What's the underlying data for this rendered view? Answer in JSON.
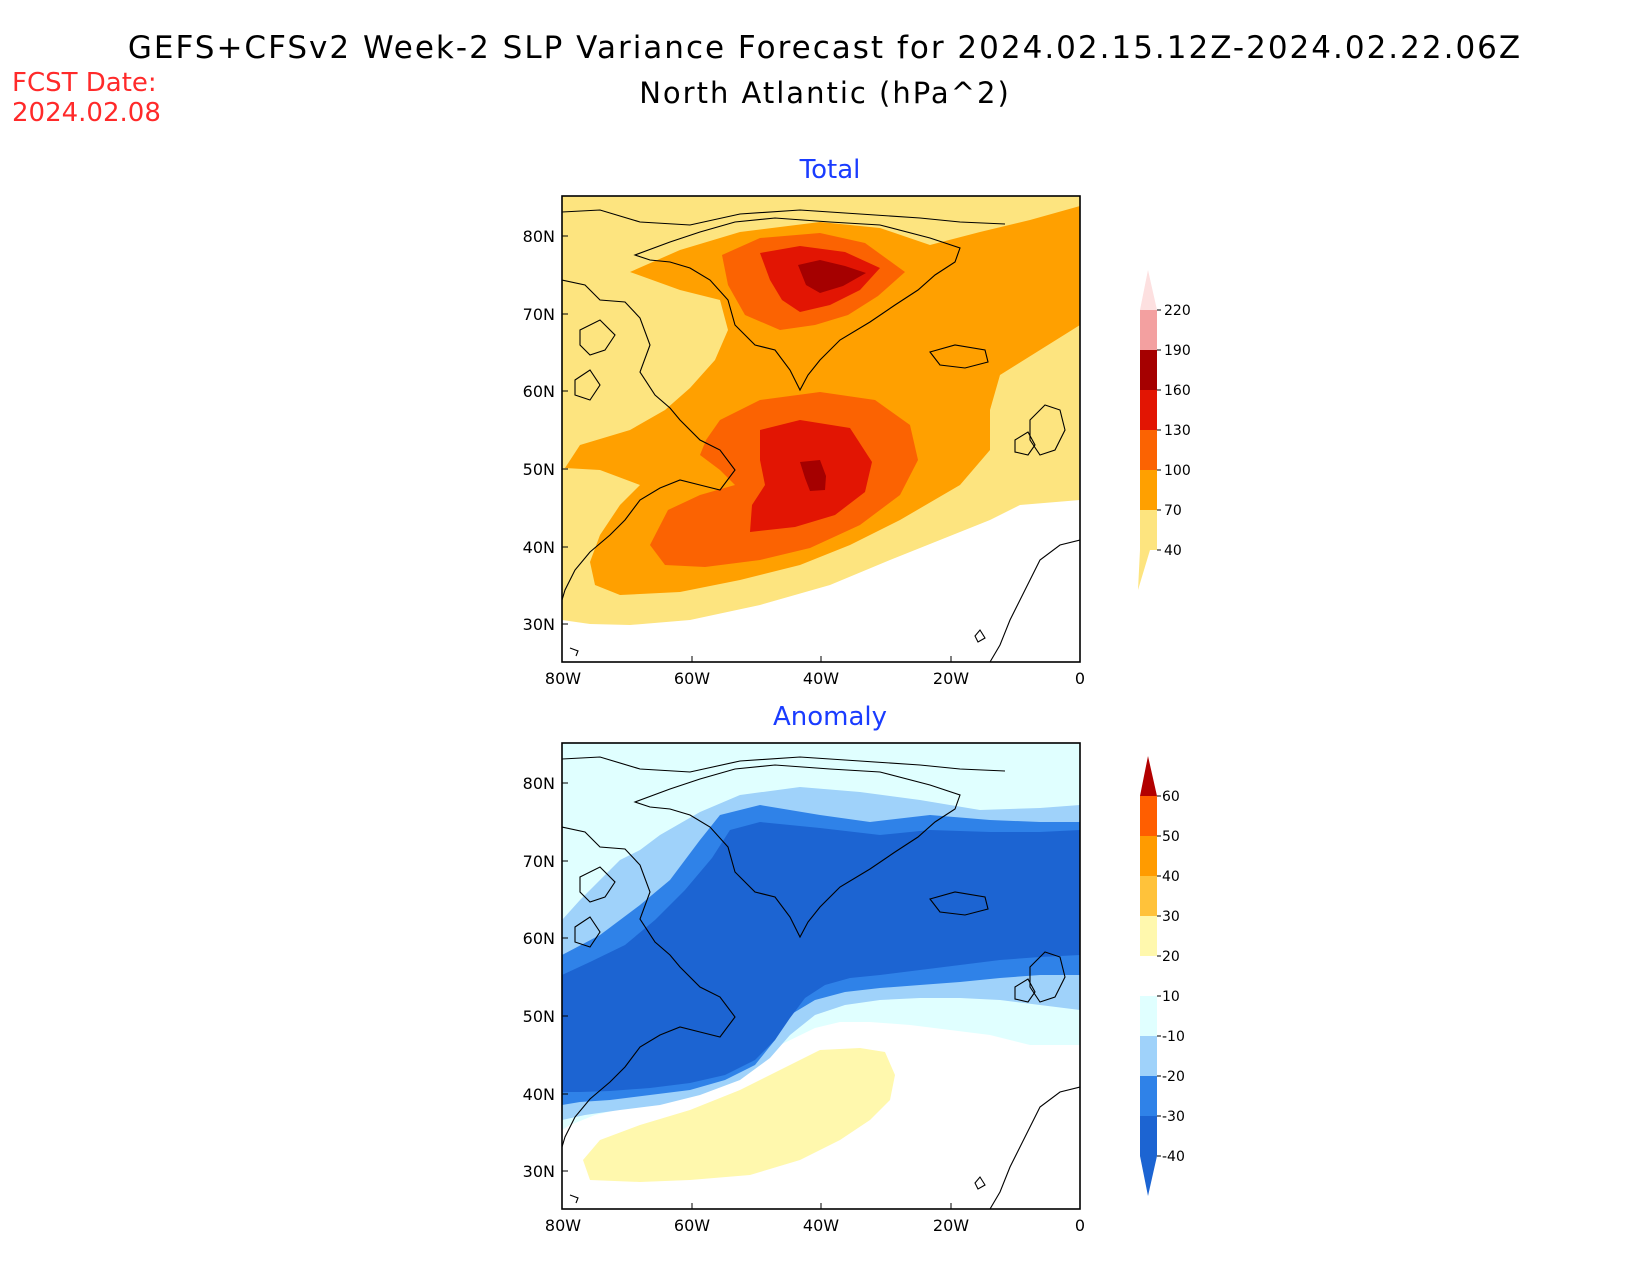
{
  "header": {
    "title": "GEFS+CFSv2 Week-2 SLP Variance Forecast for 2024.02.15.12Z-2024.02.22.06Z",
    "subtitle": "North Atlantic (hPa^2)",
    "fcst_label": "FCST Date:",
    "fcst_date": "2024.02.08"
  },
  "map_axes": {
    "lat_ticks": [
      "80N",
      "70N",
      "60N",
      "50N",
      "40N",
      "30N"
    ],
    "lon_ticks": [
      "80W",
      "60W",
      "40W",
      "20W",
      "0"
    ],
    "lat_range": [
      25,
      85
    ],
    "lon_range": [
      -80,
      0
    ]
  },
  "panels": [
    {
      "title": "Total",
      "colorbar": {
        "levels": [
          "40",
          "70",
          "100",
          "130",
          "160",
          "190",
          "220"
        ],
        "colors": [
          "#fde47f",
          "#ffa000",
          "#fb6302",
          "#e21503",
          "#a50000",
          "#f3a0a0",
          "#fde0e0"
        ]
      }
    },
    {
      "title": "Anomaly",
      "colorbar": {
        "levels": [
          "-40",
          "-30",
          "-20",
          "-10",
          "10",
          "20",
          "30",
          "40",
          "50",
          "60"
        ],
        "colors": [
          "#1c64d2",
          "#2f82e8",
          "#9fd2fa",
          "#e0ffff",
          "#ffffff",
          "#fff8ad",
          "#ffc23a",
          "#ff9b00",
          "#ff5e00",
          "#e81700",
          "#b20000"
        ]
      }
    }
  ],
  "colors": {
    "title_blue": "#1a3cff",
    "fcst_red": "#ff2a2a",
    "coastline": "#000000"
  }
}
